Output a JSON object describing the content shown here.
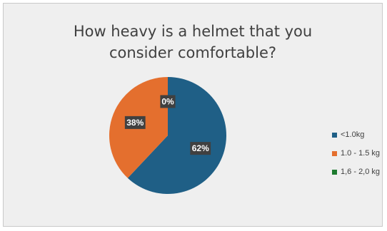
{
  "chart_data": {
    "type": "pie",
    "title_lines": [
      "How heavy is a helmet that you",
      "consider comfortable?"
    ],
    "categories": [
      "<1.0kg",
      "1.0 - 1.5 kg",
      "1,6 - 2,0 kg"
    ],
    "values": [
      62,
      38,
      0
    ],
    "data_labels": [
      "62%",
      "38%",
      "0%"
    ],
    "colors": [
      "#1f5f86",
      "#e46f2e",
      "#1e7b2f"
    ],
    "legend_position": "right"
  }
}
